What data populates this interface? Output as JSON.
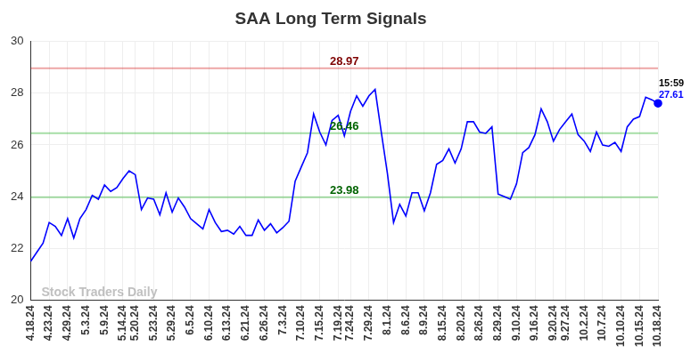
{
  "chart_data": {
    "type": "line",
    "title": "SAA Long Term Signals",
    "watermark": "Stock Traders Daily",
    "categories": [
      "4.18.24",
      null,
      null,
      "4.23.24",
      null,
      null,
      "4.29.24",
      null,
      null,
      "5.3.24",
      null,
      null,
      "5.9.24",
      null,
      null,
      "5.14.24",
      null,
      "5.20.24",
      null,
      null,
      "5.23.24",
      null,
      null,
      "5.29.24",
      null,
      null,
      "6.5.24",
      null,
      null,
      "6.10.24",
      null,
      null,
      "6.13.24",
      null,
      null,
      "6.21.24",
      null,
      null,
      "6.26.24",
      null,
      null,
      "7.3.24",
      null,
      null,
      "7.10.24",
      null,
      null,
      "7.15.24",
      null,
      null,
      "7.19.24",
      null,
      "7.24.24",
      null,
      null,
      "7.29.24",
      null,
      null,
      "8.1.24",
      null,
      null,
      "8.6.24",
      null,
      null,
      "8.9.24",
      null,
      null,
      "8.15.24",
      null,
      null,
      "8.20.24",
      null,
      null,
      "8.26.24",
      null,
      null,
      "8.29.24",
      null,
      null,
      "9.10.24",
      null,
      null,
      "9.16.24",
      null,
      null,
      "9.20.24",
      null,
      "9.27.24",
      null,
      null,
      "10.2.24",
      null,
      null,
      "10.7.24",
      null,
      null,
      "10.10.24",
      null,
      null,
      "10.15.24",
      null,
      null,
      "10.18.24"
    ],
    "series": [
      {
        "name": "SAA",
        "color": "#0000ff",
        "marker": "last_point",
        "values": [
          21.5,
          21.85,
          22.2,
          23.0,
          22.85,
          22.5,
          23.15,
          22.4,
          23.15,
          23.5,
          24.05,
          23.9,
          24.45,
          24.2,
          24.35,
          24.7,
          25.0,
          24.85,
          23.5,
          23.95,
          23.9,
          23.3,
          24.15,
          23.4,
          23.95,
          23.6,
          23.15,
          22.95,
          22.75,
          23.5,
          23.0,
          22.65,
          22.7,
          22.55,
          22.85,
          22.5,
          22.5,
          23.1,
          22.7,
          22.95,
          22.6,
          22.8,
          23.05,
          24.6,
          25.15,
          25.7,
          27.2,
          26.5,
          26.0,
          26.95,
          27.15,
          26.35,
          27.3,
          27.9,
          27.5,
          27.9,
          28.15,
          26.5,
          24.9,
          23.0,
          23.7,
          23.25,
          24.15,
          24.15,
          23.45,
          24.15,
          25.25,
          25.4,
          25.85,
          25.3,
          25.85,
          26.9,
          26.9,
          26.5,
          26.45,
          26.7,
          24.1,
          24.0,
          23.9,
          24.5,
          25.7,
          25.9,
          26.4,
          27.4,
          26.9,
          26.15,
          26.6,
          26.9,
          27.2,
          26.4,
          26.15,
          25.75,
          26.5,
          26.0,
          25.95,
          26.1,
          25.75,
          26.7,
          27.0,
          27.1,
          27.85,
          27.75,
          27.61
        ]
      }
    ],
    "reference_lines": [
      {
        "value": 28.97,
        "label": "28.97",
        "color": "#cc0000"
      },
      {
        "value": 26.46,
        "label": "26.46",
        "color": "#00a000"
      },
      {
        "value": 23.98,
        "label": "23.98",
        "color": "#00a000"
      }
    ],
    "annotations": [
      {
        "text": "15:59",
        "x": "10.18.24"
      }
    ],
    "ylim": [
      20,
      30
    ],
    "yticks": [
      20,
      22,
      24,
      26,
      28,
      30
    ],
    "grid": true
  }
}
